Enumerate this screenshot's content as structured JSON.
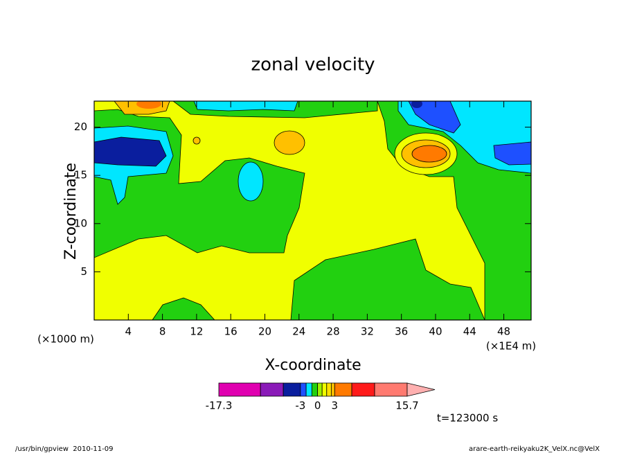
{
  "chart_data": {
    "type": "contour",
    "title": "zonal velocity",
    "x_label": "X-coordinate",
    "y_label": "Z-coordinate",
    "x_unit_label": "(×1E4 m)",
    "y_unit_label": "(×1000 m)",
    "xlim": [
      0,
      51.2
    ],
    "ylim": [
      0,
      22.7
    ],
    "xticks": [
      4,
      8,
      12,
      16,
      20,
      24,
      28,
      32,
      36,
      40,
      44,
      48
    ],
    "yticks": [
      5,
      10,
      15,
      20
    ],
    "colorbar": {
      "levels": [
        -17.3,
        -10,
        -6,
        -3,
        -2,
        -1,
        0,
        0.8,
        1.6,
        2.4,
        3,
        6,
        10,
        15.7
      ],
      "colors": [
        "#e000b0",
        "#8a1ab8",
        "#0a1e9e",
        "#1e50ff",
        "#00e6ff",
        "#22d010",
        "#a0f000",
        "#f0ff00",
        "#ffe000",
        "#ffc000",
        "#ff7a00",
        "#ff1a1a",
        "#ff7a70"
      ],
      "extend_color": "#ffb0b0",
      "ticks": [
        -17.3,
        -3,
        0,
        3,
        15.7
      ]
    },
    "time_label": "t=123000 s"
  },
  "footer": {
    "left": "/usr/bin/gpview  2010-11-09",
    "right": "arare-earth-reikyaku2K_VelX.nc@VelX"
  }
}
